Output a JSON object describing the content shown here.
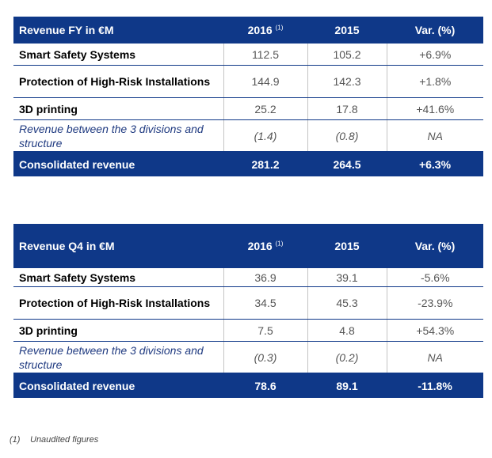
{
  "fy_table": {
    "header": {
      "label": "Revenue FY in €M",
      "col1": "2016",
      "col1_note": "(1)",
      "col2": "2015",
      "col3": "Var. (%)"
    },
    "rows": [
      {
        "label": "Smart Safety Systems",
        "v2016": "112.5",
        "v2015": "105.2",
        "var": "+6.9%"
      },
      {
        "label": "Protection of High-Risk Installations",
        "v2016": "144.9",
        "v2015": "142.3",
        "var": "+1.8%"
      },
      {
        "label": "3D printing",
        "v2016": "25.2",
        "v2015": "17.8",
        "var": "+41.6%"
      },
      {
        "label": "Revenue between the 3 divisions and structure",
        "v2016": "(1.4)",
        "v2015": "(0.8)",
        "var": "NA"
      }
    ],
    "total": {
      "label": "Consolidated revenue",
      "v2016": "281.2",
      "v2015": "264.5",
      "var": "+6.3%"
    }
  },
  "q4_table": {
    "header": {
      "label": "Revenue Q4 in €M",
      "col1": "2016",
      "col1_note": "(1)",
      "col2": "2015",
      "col3": "Var. (%)"
    },
    "rows": [
      {
        "label": "Smart Safety Systems",
        "v2016": "36.9",
        "v2015": "39.1",
        "var": "-5.6%"
      },
      {
        "label": "Protection of High-Risk Installations",
        "v2016": "34.5",
        "v2015": "45.3",
        "var": "-23.9%"
      },
      {
        "label": "3D printing",
        "v2016": "7.5",
        "v2015": "4.8",
        "var": "+54.3%"
      },
      {
        "label": "Revenue between the 3 divisions and structure",
        "v2016": "(0.3)",
        "v2015": "(0.2)",
        "var": "NA"
      }
    ],
    "total": {
      "label": "Consolidated revenue",
      "v2016": "78.6",
      "v2015": "89.1",
      "var": "-11.8%"
    }
  },
  "footnote": {
    "mark": "(1)",
    "text": "Unaudited figures"
  },
  "colors": {
    "header_bg": "#0f3888",
    "italic_label": "#1f3a80"
  }
}
